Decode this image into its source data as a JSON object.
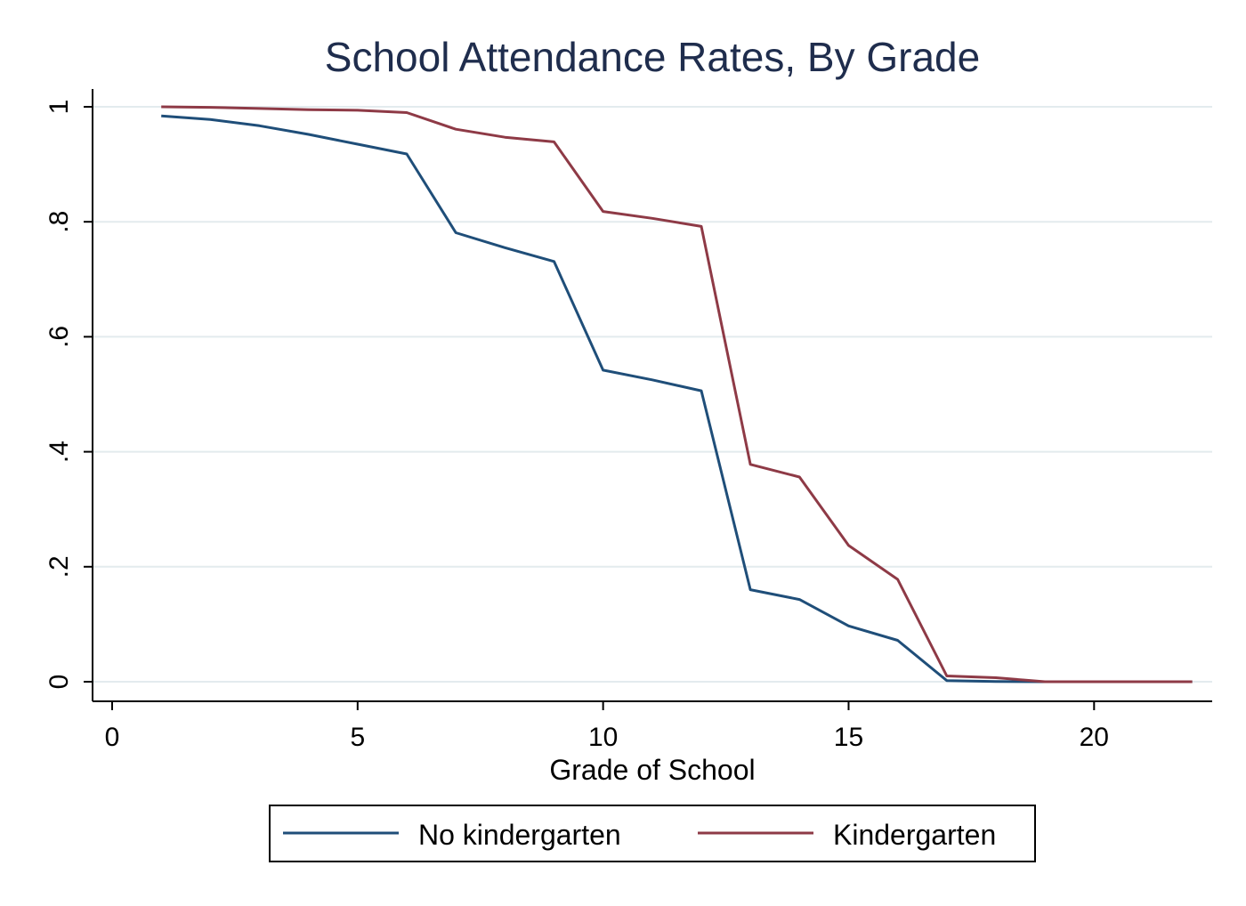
{
  "chart_data": {
    "type": "line",
    "title": "School Attendance Rates, By Grade",
    "xlabel": "Grade of School",
    "ylabel": "",
    "xlim": [
      0,
      22
    ],
    "ylim": [
      0,
      1
    ],
    "xticks": [
      0,
      5,
      10,
      15,
      20
    ],
    "xtick_labels": [
      "0",
      "5",
      "10",
      "15",
      "20"
    ],
    "yticks": [
      0,
      0.2,
      0.4,
      0.6,
      0.8,
      1
    ],
    "ytick_labels": [
      "0",
      ".2",
      ".4",
      ".6",
      ".8",
      "1"
    ],
    "grid": true,
    "legend_position": "bottom",
    "x": [
      1,
      2,
      3,
      4,
      5,
      6,
      7,
      8,
      9,
      10,
      11,
      12,
      13,
      14,
      15,
      16,
      17,
      18,
      19,
      20,
      21,
      22
    ],
    "series": [
      {
        "name": "No kindergarten",
        "color": "#1f4e79",
        "values": [
          0.984,
          0.978,
          0.967,
          0.952,
          0.935,
          0.918,
          0.781,
          0.755,
          0.731,
          0.542,
          0.525,
          0.506,
          0.16,
          0.143,
          0.097,
          0.072,
          0.002,
          0.0005,
          0.0,
          0.0,
          0.0,
          0.0
        ]
      },
      {
        "name": "Kindergarten",
        "color": "#8e3a46",
        "values": [
          1.0,
          0.999,
          0.997,
          0.995,
          0.994,
          0.99,
          0.961,
          0.947,
          0.939,
          0.818,
          0.806,
          0.792,
          0.378,
          0.356,
          0.237,
          0.178,
          0.01,
          0.007,
          0.0,
          0.0,
          0.0,
          0.0
        ]
      }
    ]
  }
}
